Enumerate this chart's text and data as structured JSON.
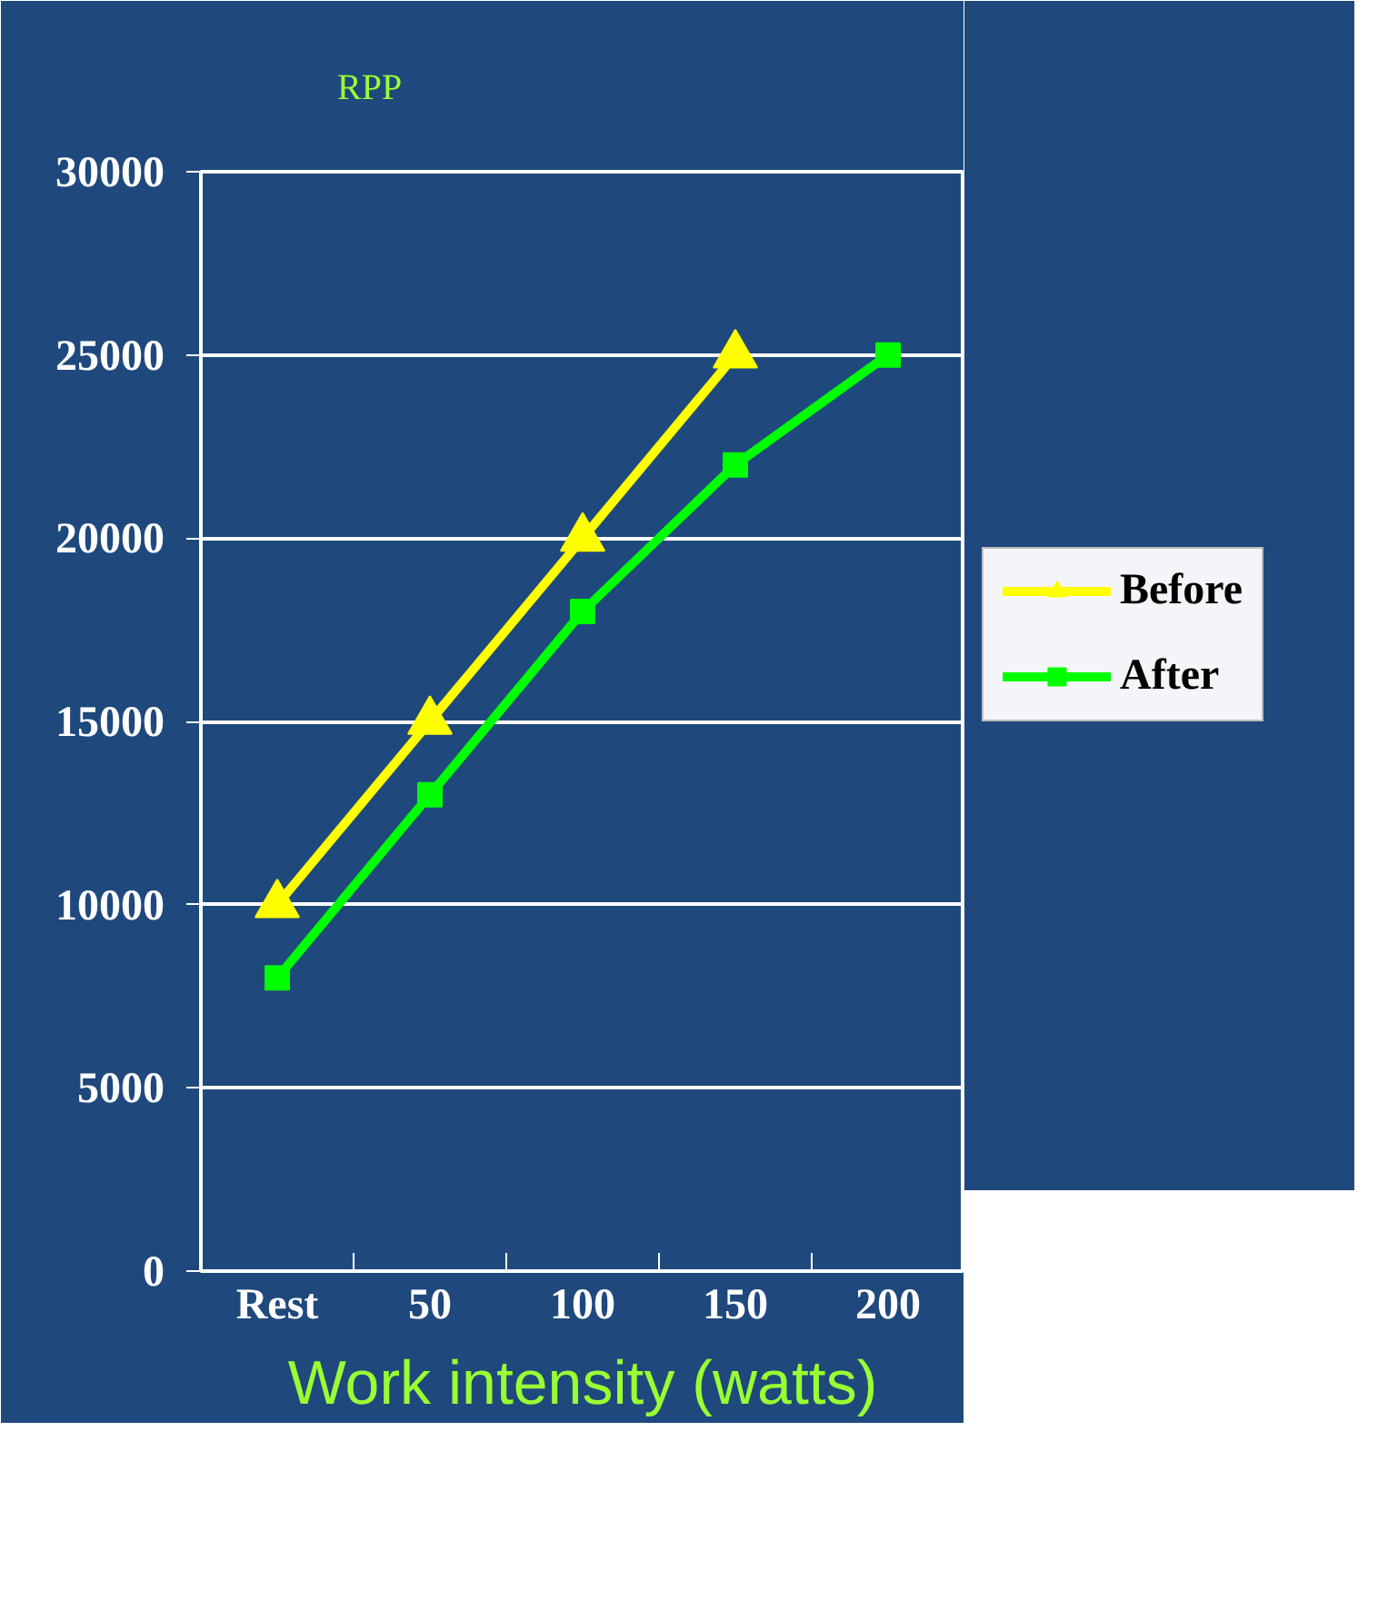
{
  "chart_data": {
    "type": "line",
    "title": "RPP",
    "xlabel": "Work intensity (watts)",
    "categories": [
      "Rest",
      "50",
      "100",
      "150",
      "200"
    ],
    "series": [
      {
        "name": "Before",
        "color": "#ffff00",
        "marker": "triangle",
        "values": [
          10000,
          15000,
          20000,
          25000,
          null
        ]
      },
      {
        "name": "After",
        "color": "#00ff00",
        "marker": "square",
        "values": [
          8000,
          13000,
          18000,
          22000,
          25000
        ]
      }
    ],
    "ylim": [
      0,
      30000
    ],
    "yticks": [
      0,
      5000,
      10000,
      15000,
      20000,
      25000,
      30000
    ],
    "grid": "y",
    "legend": "right"
  }
}
